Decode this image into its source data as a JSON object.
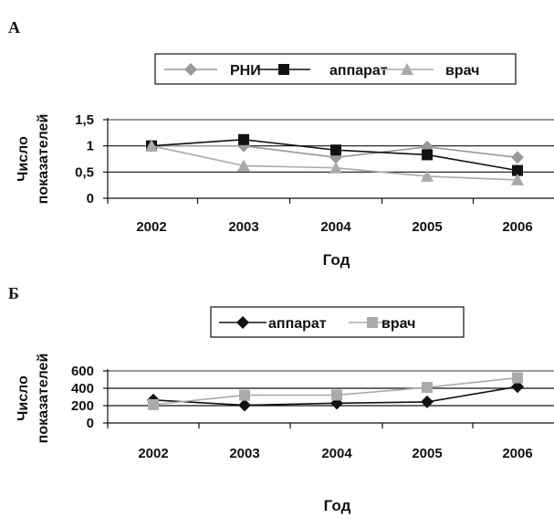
{
  "chart_data": [
    {
      "panel": "А",
      "type": "line",
      "categories": [
        "2002",
        "2003",
        "2004",
        "2005",
        "2006"
      ],
      "series": [
        {
          "name": "РНИ",
          "values": [
            1.0,
            1.0,
            0.78,
            0.98,
            0.78
          ],
          "color": "#999999",
          "marker": "diamond"
        },
        {
          "name": "аппарат",
          "values": [
            1.0,
            1.12,
            0.92,
            0.83,
            0.53
          ],
          "color": "#111111",
          "marker": "square"
        },
        {
          "name": "врач",
          "values": [
            1.0,
            0.62,
            0.58,
            0.42,
            0.35
          ],
          "color": "#aaaaaa",
          "marker": "triangle"
        }
      ],
      "xlabel": "Год",
      "ylabel_lines": [
        "Число",
        "показателей"
      ],
      "ylim": [
        0,
        1.5
      ],
      "yticks": [
        "0",
        "0,5",
        "1",
        "1,5"
      ],
      "ytick_values": [
        0,
        0.5,
        1,
        1.5
      ],
      "grid": true,
      "legend_position": "top"
    },
    {
      "panel": "Б",
      "type": "line",
      "categories": [
        "2002",
        "2003",
        "2004",
        "2005",
        "2006"
      ],
      "series": [
        {
          "name": "аппарат",
          "values": [
            265,
            205,
            228,
            243,
            418
          ],
          "color": "#111111",
          "marker": "diamond"
        },
        {
          "name": "врач",
          "values": [
            212,
            320,
            322,
            410,
            520
          ],
          "color": "#aaaaaa",
          "marker": "square"
        }
      ],
      "xlabel": "Год",
      "ylabel_lines": [
        "Число",
        "показателей"
      ],
      "ylim": [
        0,
        600
      ],
      "yticks": [
        "0",
        "200",
        "400",
        "600"
      ],
      "ytick_values": [
        0,
        200,
        400,
        600
      ],
      "grid": true,
      "legend_position": "top"
    }
  ]
}
